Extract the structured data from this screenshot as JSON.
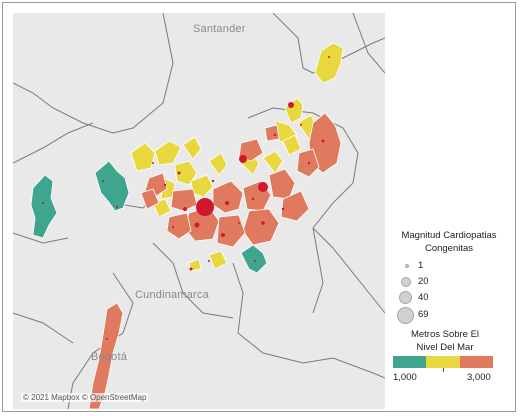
{
  "map": {
    "labels": {
      "santander": "Santander",
      "cundinamarca": "Cundinamarca",
      "bogota": "Bogotá"
    },
    "attribution": "© 2021 Mapbox © OpenStreetMap"
  },
  "legend_size": {
    "title": "Magnitud Cardiopatias Congenitas",
    "items": [
      {
        "label": "1",
        "value": 1
      },
      {
        "label": "20",
        "value": 20
      },
      {
        "label": "40",
        "value": 40
      },
      {
        "label": "69",
        "value": 69
      }
    ]
  },
  "legend_color": {
    "title": "Metros Sobre El Nivel Del Mar",
    "min_label": "1,000",
    "max_label": "3,000",
    "colors": [
      "#3fa58f",
      "#e8d83d",
      "#e07a5f"
    ]
  },
  "colors": {
    "low": "#3fa58f",
    "mid": "#e8d83d",
    "high": "#e07a5f",
    "dot": "#d0182a",
    "background": "#e9e9e9"
  }
}
